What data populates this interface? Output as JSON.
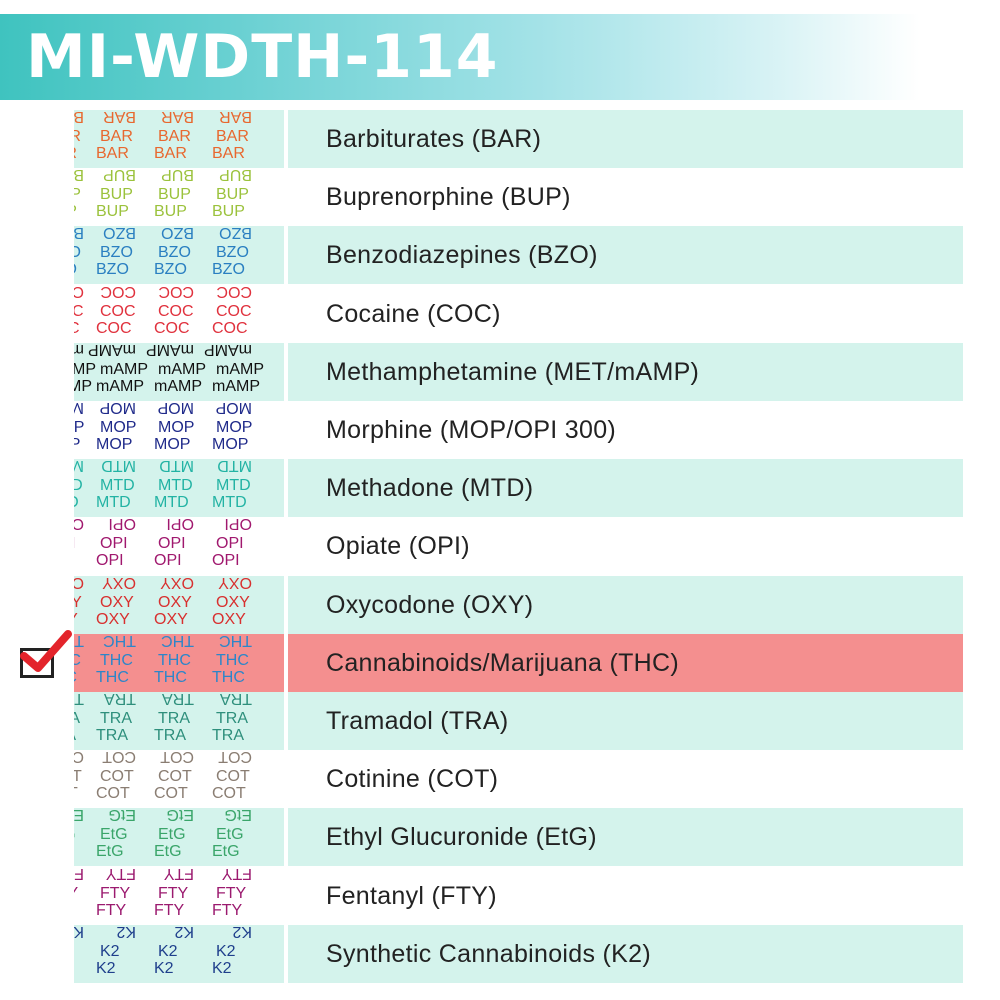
{
  "header": {
    "title": "MI-WDTH-114",
    "bg_color": "#3fc3bf"
  },
  "rows": [
    {
      "label": "Barbiturates (BAR)",
      "code": "BAR",
      "color": "#e8682f",
      "shaded": true
    },
    {
      "label": "Buprenorphine (BUP)",
      "code": "BUP",
      "color": "#9bc23c",
      "shaded": false
    },
    {
      "label": "Benzodiazepines (BZO)",
      "code": "BZO",
      "color": "#2a7fc1",
      "shaded": true
    },
    {
      "label": "Cocaine (COC)",
      "code": "COC",
      "color": "#e0313d",
      "shaded": false
    },
    {
      "label": "Methamphetamine (MET/mAMP)",
      "code": "mAMP",
      "color": "#111111",
      "shaded": true
    },
    {
      "label": "Morphine (MOP/OPI 300)",
      "code": "MOP",
      "color": "#1f2a8a",
      "shaded": false
    },
    {
      "label": "Methadone (MTD)",
      "code": "MTD",
      "color": "#23b3a4",
      "shaded": true
    },
    {
      "label": "Opiate (OPI)",
      "code": "OPI",
      "color": "#a0186e",
      "shaded": false
    },
    {
      "label": "Oxycodone (OXY)",
      "code": "OXY",
      "color": "#d8302f",
      "shaded": true
    },
    {
      "label": "Cannabinoids/Marijuana (THC)",
      "code": "THC",
      "color": "#2d86c9",
      "shaded": false,
      "selected": true
    },
    {
      "label": "Tramadol (TRA)",
      "code": "TRA",
      "color": "#2e8f7c",
      "shaded": true
    },
    {
      "label": "Cotinine (COT)",
      "code": "COT",
      "color": "#8a7d72",
      "shaded": false
    },
    {
      "label": "Ethyl Glucuronide (EtG)",
      "code": "EtG",
      "color": "#3aa56a",
      "shaded": true
    },
    {
      "label": "Fentanyl (FTY)",
      "code": "FTY",
      "color": "#9b1a6f",
      "shaded": false
    },
    {
      "label": "Synthetic Cannabinoids (K2)",
      "code": "K2",
      "color": "#1f3f8c",
      "shaded": true
    }
  ],
  "checkbox": {
    "checked": true,
    "check_color": "#e3242b"
  }
}
